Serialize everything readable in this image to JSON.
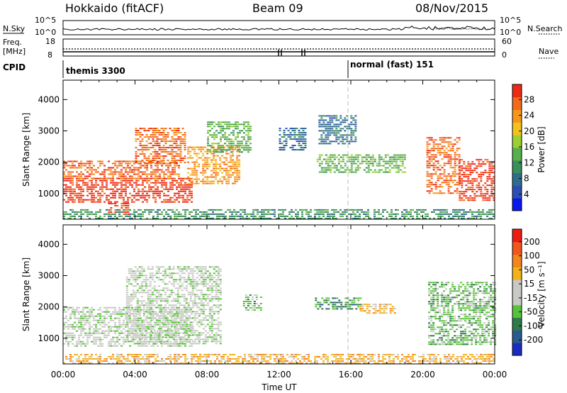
{
  "header": {
    "station": "Hokkaido (fitACF)",
    "beam": "Beam 09",
    "date": "08/Nov/2015"
  },
  "side_labels": {
    "nsky": "N.Sky",
    "freq": "Freq.",
    "freq_unit": "[MHz]",
    "cpid": "CPID",
    "nsearch": "N.Search",
    "nave": "Nave"
  },
  "top_ticks": {
    "nsky_left_hi": "10^5",
    "nsky_left_lo": "10^0",
    "nsky_right_hi": "10^5",
    "nsky_right_lo": "10^0",
    "freq_left_hi": "18",
    "freq_left_lo": "8",
    "nave_right_hi": "60",
    "nave_right_lo": "0"
  },
  "cpid_labels": {
    "left": "themis 3300",
    "right": "normal (fast) 151"
  },
  "chart_data": [
    {
      "type": "heatmap",
      "name": "power",
      "ylabel": "Slant Range [km]",
      "ylim": [
        180,
        4620
      ],
      "yticks": [
        "1000",
        "2000",
        "3000",
        "4000"
      ],
      "xlim_hours": [
        0,
        24
      ],
      "colorbar": {
        "label": "Power [dB]",
        "ticks": [
          "4",
          "8",
          "12",
          "16",
          "20",
          "24",
          "28"
        ],
        "colors": [
          "#0a18f0",
          "#2b4fb5",
          "#2f6e8a",
          "#3b8f5a",
          "#58b04a",
          "#9ccf33",
          "#f2c31b",
          "#f7961a",
          "#f26a1b",
          "#ee2a14"
        ]
      },
      "blobs": [
        {
          "t0": 0.0,
          "t1": 7.2,
          "r0": 750,
          "r1": 1500,
          "level": 9
        },
        {
          "t0": 0.0,
          "t1": 6.5,
          "r0": 1500,
          "r1": 2050,
          "level": 8
        },
        {
          "t0": 2.5,
          "t1": 3.6,
          "r0": 350,
          "r1": 700,
          "level": 9
        },
        {
          "t0": 4.0,
          "t1": 6.8,
          "r0": 2000,
          "r1": 3100,
          "level": 8
        },
        {
          "t0": 6.9,
          "t1": 9.8,
          "r0": 1300,
          "r1": 2500,
          "level": 7
        },
        {
          "t0": 8.0,
          "t1": 10.4,
          "r0": 2300,
          "r1": 3300,
          "level": 4
        },
        {
          "t0": 12.0,
          "t1": 13.5,
          "r0": 2400,
          "r1": 3100,
          "level": 2
        },
        {
          "t0": 14.2,
          "t1": 16.3,
          "r0": 2600,
          "r1": 3500,
          "level": 2
        },
        {
          "t0": 14.1,
          "t1": 19.0,
          "r0": 1700,
          "r1": 2250,
          "level": 4
        },
        {
          "t0": 20.2,
          "t1": 22.0,
          "r0": 1000,
          "r1": 2800,
          "level": 8
        },
        {
          "t0": 22.0,
          "t1": 24.0,
          "r0": 750,
          "r1": 2100,
          "level": 9
        },
        {
          "t0": 0.0,
          "t1": 24.0,
          "r0": 200,
          "r1": 500,
          "level": 3
        }
      ]
    },
    {
      "type": "heatmap",
      "name": "velocity",
      "ylabel": "Slant Range [km]",
      "ylim": [
        180,
        4620
      ],
      "yticks": [
        "1000",
        "2000",
        "3000",
        "4000"
      ],
      "xlim_hours": [
        0,
        24
      ],
      "xticks": [
        "00:00",
        "04:00",
        "08:00",
        "12:00",
        "16:00",
        "20:00",
        "00:00"
      ],
      "xlabel": "Time UT",
      "colorbar": {
        "label": "Velocity [m s⁻¹]",
        "ticks": [
          "200",
          "100",
          "50",
          "15",
          "-15",
          "-50",
          "-100",
          "-200"
        ],
        "colors": [
          "#1a2cc0",
          "#2a5a8e",
          "#2e7a4a",
          "#58c23a",
          "#c8c8c4",
          "#c8c8c4",
          "#f2b21b",
          "#f2851b",
          "#f2561b",
          "#ee1a14"
        ]
      },
      "blobs": [
        {
          "t0": 0.0,
          "t1": 7.2,
          "r0": 750,
          "r1": 2000,
          "level": 4
        },
        {
          "t0": 3.5,
          "t1": 8.8,
          "r0": 800,
          "r1": 3300,
          "level": 4
        },
        {
          "t0": 10.0,
          "t1": 11.0,
          "r0": 1900,
          "r1": 2400,
          "level": 3
        },
        {
          "t0": 14.0,
          "t1": 16.5,
          "r0": 1900,
          "r1": 2300,
          "level": 2
        },
        {
          "t0": 16.5,
          "t1": 18.5,
          "r0": 1800,
          "r1": 2100,
          "level": 6
        },
        {
          "t0": 20.3,
          "t1": 24.0,
          "r0": 800,
          "r1": 2800,
          "level": 3
        },
        {
          "t0": 0.0,
          "t1": 24.0,
          "r0": 220,
          "r1": 500,
          "level": 6
        }
      ]
    }
  ]
}
